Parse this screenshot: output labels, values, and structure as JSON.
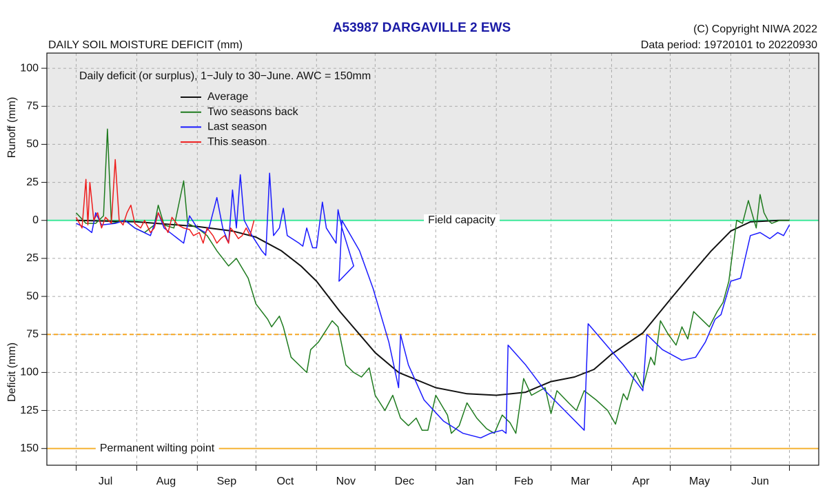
{
  "chart_data": {
    "type": "line",
    "title": "A53987  DARGAVILLE 2 EWS",
    "subtitle": "DAILY SOIL MOISTURE DEFICIT (mm)",
    "copyright": "(C) Copyright NIWA  2022",
    "data_period": "Data period:  19720101  to  20220930",
    "annotation": "Daily deficit (or surplus), 1−July to 30−June.  AWC = 150mm",
    "ylabel_top": "Runoff (mm)",
    "ylabel_bottom": "Deficit (mm)",
    "xlim": [
      -15,
      380
    ],
    "ylim": [
      -161,
      110
    ],
    "xticks": [
      0,
      31,
      62,
      92,
      123,
      153,
      184,
      215,
      243,
      274,
      304,
      335,
      365
    ],
    "month_labels": [
      {
        "value": 15,
        "label": "Jul"
      },
      {
        "value": 46,
        "label": "Aug"
      },
      {
        "value": 77,
        "label": "Sep"
      },
      {
        "value": 107,
        "label": "Oct"
      },
      {
        "value": 138,
        "label": "Nov"
      },
      {
        "value": 168,
        "label": "Dec"
      },
      {
        "value": 199,
        "label": "Jan"
      },
      {
        "value": 229,
        "label": "Feb"
      },
      {
        "value": 258,
        "label": "Mar"
      },
      {
        "value": 289,
        "label": "Apr"
      },
      {
        "value": 319,
        "label": "May"
      },
      {
        "value": 350,
        "label": "Jun"
      }
    ],
    "yticks": [
      100,
      75,
      50,
      25,
      0,
      {
        "value": -25,
        "label": "25"
      },
      {
        "value": -50,
        "label": "50"
      },
      {
        "value": -75,
        "label": "75"
      },
      {
        "value": -100,
        "label": "100"
      },
      {
        "value": -125,
        "label": "125"
      },
      {
        "value": -150,
        "label": "150"
      }
    ],
    "grid": true,
    "reference_lines": [
      {
        "value": 0,
        "label": "Field capacity",
        "color": "#3ee89a",
        "style": "solid"
      },
      {
        "value": -75,
        "color": "#f5a623",
        "style": "dashed"
      },
      {
        "value": -150,
        "label": "Permanent wilting point",
        "color": "#f5b335",
        "style": "solid"
      }
    ],
    "series": [
      {
        "name": "Average",
        "color": "#111111",
        "x": [
          0,
          31,
          62,
          80,
          92,
          105,
          115,
          123,
          135,
          145,
          153,
          165,
          184,
          200,
          215,
          230,
          243,
          255,
          265,
          274,
          290,
          304,
          315,
          325,
          335,
          345,
          360,
          365
        ],
        "values": [
          0,
          -1,
          -4,
          -7,
          -11,
          -20,
          -30,
          -40,
          -60,
          -75,
          -87,
          -100,
          -110,
          -114,
          -115,
          -113,
          -106,
          -103,
          -98,
          -88,
          -74,
          -52,
          -35,
          -20,
          -7,
          -1,
          0,
          0
        ]
      },
      {
        "name": "Two seasons back",
        "color": "#1e7a1e",
        "x": [
          0,
          5,
          10,
          14,
          16,
          18,
          25,
          30,
          35,
          40,
          42,
          45,
          50,
          55,
          57,
          62,
          67,
          72,
          78,
          82,
          88,
          92,
          95,
          98,
          100,
          104,
          106,
          110,
          114,
          118,
          120,
          124,
          131,
          134,
          138,
          142,
          146,
          150,
          153,
          158,
          162,
          166,
          170,
          174,
          177,
          180,
          184,
          190,
          192,
          196,
          200,
          205,
          210,
          214,
          218,
          222,
          225,
          229,
          233,
          240,
          243,
          246,
          252,
          256,
          260,
          266,
          272,
          276,
          280,
          282,
          286,
          290,
          294,
          296,
          299,
          303,
          307,
          310,
          313,
          316,
          320,
          324,
          328,
          331,
          334,
          338,
          341,
          344,
          348,
          350,
          352,
          354,
          356,
          360,
          365
        ],
        "values": [
          5,
          -2,
          -2,
          3,
          60,
          -2,
          0,
          -5,
          -8,
          -3,
          10,
          -3,
          -5,
          26,
          -2,
          -5,
          -10,
          -20,
          -30,
          -25,
          -38,
          -55,
          -60,
          -65,
          -70,
          -63,
          -70,
          -90,
          -95,
          -100,
          -85,
          -80,
          -66,
          -70,
          -95,
          -100,
          -103,
          -97,
          -115,
          -125,
          -115,
          -130,
          -135,
          -130,
          -138,
          -138,
          -115,
          -128,
          -140,
          -135,
          -120,
          -130,
          -137,
          -140,
          -128,
          -133,
          -140,
          -104,
          -115,
          -110,
          -127,
          -112,
          -120,
          -125,
          -112,
          -118,
          -125,
          -134,
          -114,
          -118,
          -100,
          -110,
          -90,
          -95,
          -66,
          -75,
          -82,
          -70,
          -78,
          -60,
          -65,
          -70,
          -60,
          -54,
          -40,
          0,
          -2,
          13,
          -5,
          17,
          5,
          0,
          -2,
          0,
          0
        ]
      },
      {
        "name": "Last season",
        "color": "#1a1aff",
        "x": [
          0,
          5,
          8,
          10,
          13,
          20,
          25,
          30,
          38,
          42,
          45,
          50,
          55,
          58,
          62,
          66,
          68,
          72,
          75,
          78,
          80,
          82,
          84,
          86,
          90,
          95,
          97,
          99,
          101,
          104,
          106,
          108,
          114,
          116,
          118,
          121,
          123,
          126,
          128,
          133,
          134,
          136,
          142,
          134.5,
          136,
          145,
          152,
          160,
          165,
          166,
          170,
          178,
          188,
          198,
          207,
          212,
          218,
          220,
          221,
          230,
          240,
          250,
          260,
          262,
          270,
          280,
          290,
          292,
          300,
          310,
          317,
          322,
          327,
          330,
          335,
          340,
          345,
          350,
          355,
          359,
          362,
          365
        ],
        "values": [
          -2,
          -5,
          -8,
          5,
          -3,
          -2,
          0,
          -5,
          -10,
          5,
          -5,
          -10,
          -15,
          3,
          -5,
          -8,
          -5,
          15,
          -5,
          -15,
          20,
          -5,
          30,
          0,
          -10,
          -20,
          -23,
          31,
          -10,
          -5,
          8,
          -10,
          -15,
          -17,
          -5,
          -18,
          -18,
          12,
          -5,
          -15,
          7,
          -5,
          -30,
          -40,
          0,
          -20,
          -45,
          -80,
          -110,
          -75,
          -95,
          -118,
          -132,
          -140,
          -143,
          -140,
          -138,
          -140,
          -82,
          -95,
          -112,
          -125,
          -138,
          -68,
          -80,
          -95,
          -112,
          -75,
          -85,
          -92,
          -90,
          -80,
          -65,
          -62,
          -40,
          -38,
          -10,
          -8,
          -12,
          -8,
          -10,
          -3
        ]
      },
      {
        "name": "This season",
        "color": "#ee1c1c",
        "x": [
          0,
          3,
          5,
          6,
          7,
          9,
          11,
          13,
          15,
          18,
          20,
          22,
          24,
          26,
          28,
          30,
          33,
          35,
          38,
          40,
          42,
          45,
          47,
          49,
          52,
          55,
          58,
          60,
          63,
          65,
          67,
          70,
          72,
          74,
          76,
          78,
          79,
          81,
          83,
          85,
          87,
          89,
          91
        ],
        "values": [
          2,
          -5,
          27,
          -3,
          25,
          0,
          5,
          -5,
          2,
          -2,
          40,
          0,
          -3,
          5,
          10,
          -2,
          -5,
          0,
          -8,
          -5,
          5,
          -3,
          -8,
          2,
          -3,
          -5,
          -6,
          -10,
          -8,
          -15,
          -5,
          -10,
          -15,
          -12,
          -10,
          -15,
          -5,
          -8,
          -12,
          -10,
          -5,
          -10,
          0
        ]
      }
    ]
  }
}
